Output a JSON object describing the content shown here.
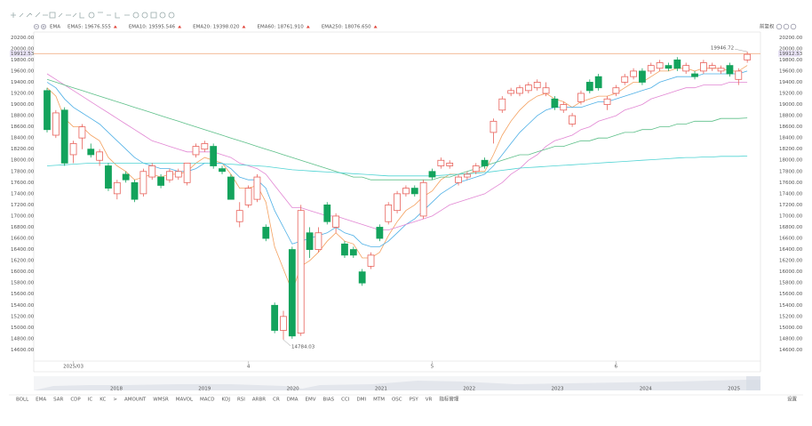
{
  "chart_data": {
    "type": "candlestick",
    "indicator": "EMA",
    "adjust_mode": "前复权",
    "rise_color": "#e8625b",
    "fall_color": "#13a35c",
    "categories": [
      null,
      null,
      null,
      "2025/03",
      null,
      null,
      null,
      null,
      null,
      null,
      null,
      null,
      null,
      null,
      null,
      null,
      null,
      null,
      null,
      null,
      null,
      null,
      null,
      "4",
      null,
      null,
      null,
      null,
      null,
      null,
      null,
      null,
      null,
      null,
      null,
      null,
      null,
      null,
      null,
      null,
      null,
      null,
      null,
      null,
      "5",
      null,
      null,
      null,
      null,
      null,
      null,
      null,
      null,
      null,
      null,
      null,
      null,
      null,
      null,
      null,
      null,
      null,
      null,
      null,
      null,
      "6",
      null,
      null,
      null,
      null,
      null,
      null,
      null,
      null,
      null,
      null,
      null,
      null,
      null,
      null,
      null
    ],
    "open": [
      19250,
      18450,
      18900,
      18100,
      18400,
      18200,
      18000,
      17900,
      17400,
      17750,
      17600,
      17400,
      17700,
      17700,
      17650,
      17700,
      17600,
      18100,
      18200,
      18250,
      17850,
      17700,
      16900,
      17200,
      17300,
      16800,
      15400,
      14950,
      16400,
      14900,
      16700,
      16400,
      17200,
      16800,
      16500,
      16400,
      16000,
      16100,
      16800,
      16900,
      17100,
      17400,
      17500,
      17000,
      17800,
      17900,
      17900,
      17600,
      17700,
      17800,
      18000,
      18500,
      18900,
      19200,
      19200,
      19250,
      19300,
      19200,
      19100,
      18900,
      18650,
      19050,
      19400,
      19500,
      19000,
      19200,
      19400,
      19500,
      19600,
      19600,
      19650,
      19700,
      19800,
      19600,
      19550,
      19600,
      19650,
      19600,
      19700,
      19450,
      19800
    ],
    "high": [
      19300,
      18900,
      18950,
      18350,
      18650,
      18300,
      18200,
      17950,
      17650,
      17800,
      17650,
      17850,
      17950,
      17750,
      17850,
      17850,
      17950,
      18300,
      18350,
      18300,
      17900,
      17750,
      17250,
      17550,
      17750,
      16850,
      15450,
      15300,
      16450,
      17200,
      16800,
      16800,
      17250,
      17050,
      16550,
      16450,
      16050,
      16350,
      16850,
      17250,
      17450,
      17550,
      17550,
      17650,
      17850,
      18050,
      18000,
      17750,
      17800,
      17950,
      18050,
      18750,
      19150,
      19300,
      19350,
      19400,
      19450,
      19400,
      19150,
      19050,
      18850,
      19250,
      19450,
      19550,
      19150,
      19350,
      19550,
      19650,
      19650,
      19750,
      19800,
      19750,
      19850,
      19750,
      19600,
      19800,
      19750,
      19700,
      19750,
      19650,
      19946.72
    ],
    "low": [
      18500,
      18400,
      17900,
      17950,
      18200,
      18050,
      17900,
      17450,
      17300,
      17600,
      17250,
      17350,
      17650,
      17500,
      17600,
      17650,
      17550,
      18050,
      18150,
      17850,
      17750,
      17300,
      16800,
      17150,
      17250,
      16550,
      14900,
      14784.03,
      14800,
      14850,
      16250,
      16350,
      16850,
      16700,
      16250,
      16250,
      15750,
      16050,
      16550,
      16850,
      17050,
      17350,
      17350,
      16950,
      17650,
      17850,
      17850,
      17550,
      17650,
      17750,
      17850,
      18300,
      18850,
      19150,
      19150,
      19200,
      19250,
      19150,
      18900,
      18850,
      18600,
      19000,
      19200,
      19250,
      18900,
      19150,
      19350,
      19450,
      19350,
      19550,
      19600,
      19600,
      19600,
      19550,
      19450,
      19550,
      19600,
      19550,
      19500,
      19350,
      19750
    ],
    "close": [
      18550,
      18850,
      17950,
      18300,
      18600,
      18100,
      18150,
      17500,
      17600,
      17650,
      17300,
      17800,
      17900,
      17550,
      17800,
      17800,
      17950,
      18250,
      18300,
      17900,
      17800,
      17300,
      17100,
      17500,
      17700,
      16600,
      14950,
      15200,
      14850,
      17100,
      16400,
      16700,
      16900,
      17000,
      16300,
      16300,
      15800,
      16300,
      16600,
      17200,
      17400,
      17500,
      17400,
      17600,
      17700,
      18000,
      17950,
      17700,
      17750,
      17900,
      17900,
      18700,
      19100,
      19250,
      19300,
      19350,
      19400,
      19300,
      18950,
      19000,
      18800,
      19200,
      19250,
      19300,
      19100,
      19300,
      19500,
      19600,
      19400,
      19700,
      19750,
      19650,
      19650,
      19700,
      19500,
      19750,
      19700,
      19650,
      19550,
      19600,
      19900
    ],
    "last_price": 19912.53,
    "series": [
      {
        "name": "EMA5: 19676.555",
        "color": "#f4a160",
        "values": [
          19300,
          19150,
          18750,
          18600,
          18600,
          18450,
          18350,
          18050,
          17900,
          17800,
          17650,
          17700,
          17750,
          17700,
          17750,
          17750,
          17800,
          17950,
          18050,
          18000,
          17950,
          17750,
          17500,
          17500,
          17550,
          17250,
          16450,
          16050,
          15650,
          16100,
          16200,
          16350,
          16550,
          16700,
          16550,
          16500,
          16250,
          16250,
          16350,
          16650,
          16900,
          17100,
          17200,
          17350,
          17450,
          17650,
          17750,
          17750,
          17750,
          17800,
          17800,
          18100,
          18450,
          18700,
          18900,
          19050,
          19150,
          19200,
          19100,
          19050,
          18950,
          19050,
          19100,
          19150,
          19150,
          19200,
          19300,
          19400,
          19400,
          19500,
          19600,
          19600,
          19650,
          19650,
          19600,
          19650,
          19650,
          19650,
          19600,
          19600,
          19700
        ]
      },
      {
        "name": "EMA10: 19595.546",
        "color": "#4fb0e6",
        "values": [
          19400,
          19300,
          19100,
          18950,
          18850,
          18750,
          18650,
          18500,
          18350,
          18200,
          18050,
          17950,
          17900,
          17850,
          17850,
          17800,
          17800,
          17850,
          17950,
          17950,
          17950,
          17850,
          17700,
          17650,
          17650,
          17500,
          17100,
          16800,
          16500,
          16550,
          16600,
          16650,
          16700,
          16800,
          16700,
          16650,
          16500,
          16450,
          16450,
          16550,
          16700,
          16850,
          16950,
          17100,
          17250,
          17400,
          17500,
          17600,
          17650,
          17700,
          17750,
          17900,
          18100,
          18300,
          18500,
          18650,
          18800,
          18900,
          18950,
          18950,
          18950,
          18950,
          19000,
          19050,
          19050,
          19100,
          19150,
          19200,
          19250,
          19300,
          19400,
          19450,
          19500,
          19500,
          19500,
          19550,
          19550,
          19550,
          19550,
          19550,
          19600
        ]
      },
      {
        "name": "EMA20: 19398.020",
        "color": "#e286d3",
        "values": [
          19550,
          19450,
          19350,
          19250,
          19150,
          19050,
          18950,
          18850,
          18750,
          18650,
          18550,
          18450,
          18350,
          18300,
          18250,
          18200,
          18150,
          18150,
          18150,
          18150,
          18100,
          18050,
          17950,
          17900,
          17850,
          17750,
          17550,
          17350,
          17150,
          17150,
          17100,
          17050,
          17000,
          17000,
          16950,
          16900,
          16850,
          16800,
          16750,
          16750,
          16800,
          16850,
          16900,
          16950,
          17000,
          17100,
          17200,
          17250,
          17300,
          17350,
          17400,
          17500,
          17600,
          17750,
          17850,
          18000,
          18100,
          18250,
          18350,
          18400,
          18450,
          18550,
          18600,
          18700,
          18750,
          18800,
          18900,
          18950,
          19000,
          19100,
          19150,
          19200,
          19250,
          19300,
          19300,
          19350,
          19350,
          19350,
          19400,
          19400,
          19400
        ]
      },
      {
        "name": "EMA60: 18761.910",
        "color": "#5cbf88",
        "values": [
          19450,
          19400,
          19350,
          19300,
          19250,
          19200,
          19150,
          19100,
          19050,
          19000,
          18950,
          18900,
          18850,
          18800,
          18750,
          18700,
          18650,
          18600,
          18550,
          18500,
          18450,
          18400,
          18350,
          18300,
          18250,
          18200,
          18150,
          18100,
          18050,
          18000,
          17950,
          17900,
          17850,
          17800,
          17750,
          17700,
          17700,
          17650,
          17650,
          17650,
          17650,
          17650,
          17650,
          17650,
          17650,
          17700,
          17700,
          17750,
          17800,
          17850,
          17900,
          17950,
          18000,
          18050,
          18100,
          18100,
          18150,
          18200,
          18250,
          18250,
          18300,
          18350,
          18350,
          18400,
          18400,
          18450,
          18500,
          18500,
          18550,
          18550,
          18600,
          18600,
          18650,
          18650,
          18700,
          18700,
          18700,
          18750,
          18750,
          18750,
          18760
        ]
      },
      {
        "name": "EMA250: 18076.650",
        "color": "#4fd3d3",
        "values": [
          17900,
          17910,
          17920,
          17930,
          17940,
          17950,
          17950,
          17950,
          17950,
          17950,
          17950,
          17950,
          17950,
          17950,
          17950,
          17950,
          17950,
          17950,
          17950,
          17950,
          17940,
          17930,
          17920,
          17910,
          17900,
          17890,
          17870,
          17850,
          17830,
          17820,
          17810,
          17800,
          17790,
          17780,
          17770,
          17760,
          17750,
          17740,
          17730,
          17720,
          17720,
          17720,
          17720,
          17720,
          17720,
          17730,
          17740,
          17750,
          17760,
          17770,
          17780,
          17800,
          17820,
          17840,
          17860,
          17870,
          17880,
          17890,
          17900,
          17910,
          17920,
          17930,
          17940,
          17950,
          17960,
          17970,
          17980,
          17990,
          18000,
          18010,
          18020,
          18030,
          18040,
          18050,
          18050,
          18060,
          18060,
          18070,
          18070,
          18070,
          18076.65
        ]
      }
    ],
    "ylim": [
      14400,
      20300
    ],
    "yticks": [
      {
        "value": 20200,
        "label": "20200.00"
      },
      {
        "value": 20000,
        "label": "20000.00"
      },
      {
        "value": 19800,
        "label": "19800.00"
      },
      {
        "value": 19600,
        "label": "19600.00"
      },
      {
        "value": 19400,
        "label": "19400.00"
      },
      {
        "value": 19200,
        "label": "19200.00"
      },
      {
        "value": 19000,
        "label": "19000.00"
      },
      {
        "value": 18800,
        "label": "18800.00"
      },
      {
        "value": 18600,
        "label": "18600.00"
      },
      {
        "value": 18400,
        "label": "18400.00"
      },
      {
        "value": 18200,
        "label": "18200.00"
      },
      {
        "value": 18000,
        "label": "18000.00"
      },
      {
        "value": 17800,
        "label": "17800.00"
      },
      {
        "value": 17600,
        "label": "17600.00"
      },
      {
        "value": 17400,
        "label": "17400.00"
      },
      {
        "value": 17200,
        "label": "17200.00"
      },
      {
        "value": 17000,
        "label": "17000.00"
      },
      {
        "value": 16800,
        "label": "16800.00"
      },
      {
        "value": 16600,
        "label": "16600.00"
      },
      {
        "value": 16400,
        "label": "16400.00"
      },
      {
        "value": 16200,
        "label": "16200.00"
      },
      {
        "value": 16000,
        "label": "16000.00"
      },
      {
        "value": 15800,
        "label": "15800.00"
      },
      {
        "value": 15600,
        "label": "15600.00"
      },
      {
        "value": 15400,
        "label": "15400.00"
      },
      {
        "value": 15200,
        "label": "15200.00"
      },
      {
        "value": 15000,
        "label": "15000.00"
      },
      {
        "value": 14800,
        "label": "14800.00"
      },
      {
        "value": 14600,
        "label": "14600.00"
      }
    ],
    "grid": false,
    "navigator_years": [
      "2018",
      "2019",
      "2020",
      "2021",
      "2022",
      "2023",
      "2024",
      "2025"
    ],
    "tabs": [
      {
        "label": "BOLL"
      },
      {
        "label": "EMA",
        "active": true
      },
      {
        "label": "SAR"
      },
      {
        "label": "CDP"
      },
      {
        "label": "IC"
      },
      {
        "label": "KC"
      },
      {
        "label": ">"
      },
      {
        "label": "AMOUNT"
      },
      {
        "label": "WMSR"
      },
      {
        "label": "MAVOL"
      },
      {
        "label": "MACD"
      },
      {
        "label": "KDJ"
      },
      {
        "label": "RSI"
      },
      {
        "label": "ARBR"
      },
      {
        "label": "CR"
      },
      {
        "label": "DMA"
      },
      {
        "label": "EMV"
      },
      {
        "label": "BIAS"
      },
      {
        "label": "CCI"
      },
      {
        "label": "DMI"
      },
      {
        "label": "MTM"
      },
      {
        "label": "OSC"
      },
      {
        "label": "PSY"
      },
      {
        "label": "VR"
      },
      {
        "label": "指标管理",
        "active": true
      }
    ],
    "settings": "设置"
  }
}
